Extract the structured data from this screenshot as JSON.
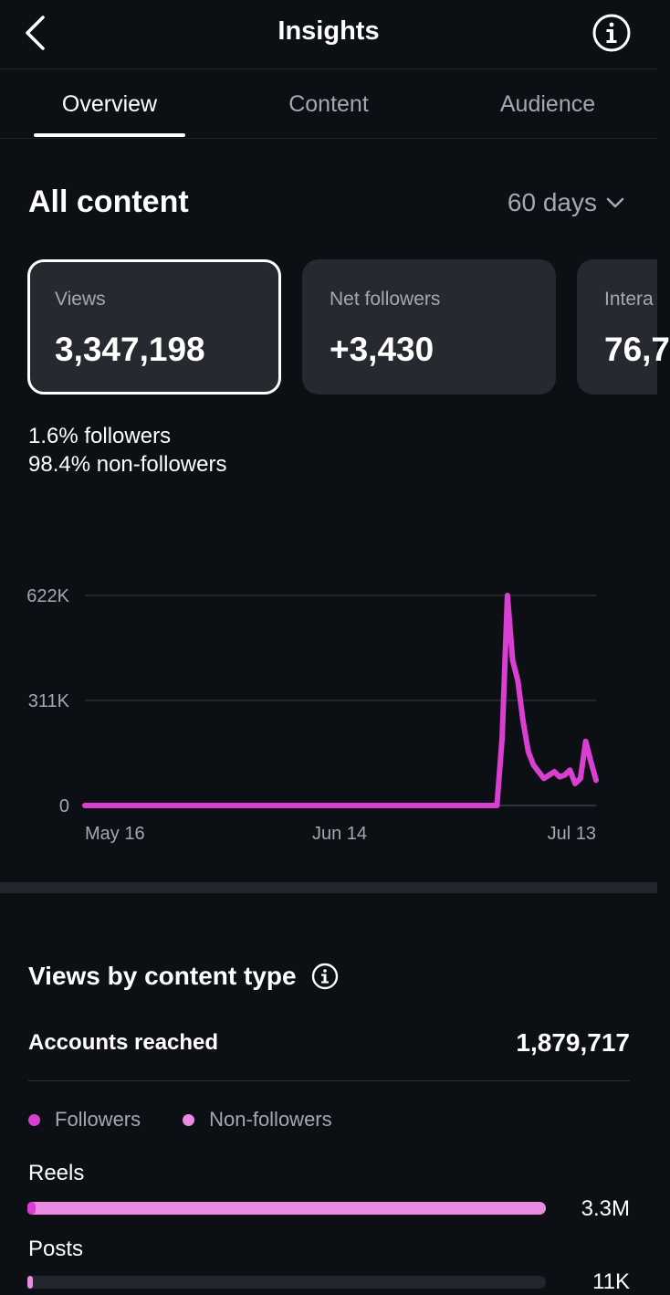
{
  "header": {
    "title": "Insights"
  },
  "tabs": [
    {
      "label": "Overview",
      "active": true
    },
    {
      "label": "Content",
      "active": false
    },
    {
      "label": "Audience",
      "active": false
    }
  ],
  "overview": {
    "section_title": "All content",
    "range": "60 days",
    "cards": [
      {
        "label": "Views",
        "value": "3,347,198",
        "selected": true
      },
      {
        "label": "Net followers",
        "value": "+3,430",
        "selected": false
      },
      {
        "label": "Intera",
        "value": "76,7",
        "selected": false
      }
    ],
    "breakdown": {
      "followers_pct": "1.6%",
      "followers_text": " followers",
      "nonfollowers_pct": "98.4%",
      "nonfollowers_text": " non-followers"
    }
  },
  "chart_data": {
    "type": "line",
    "y_ticks": [
      "622K",
      "311K",
      "0"
    ],
    "ylim": [
      0,
      622000
    ],
    "x_ticks": [
      "May 16",
      "Jun 14",
      "Jul 13"
    ],
    "color": "#d93fd0",
    "series": [
      {
        "values": [
          0,
          0,
          0,
          0,
          0,
          0,
          0,
          0,
          0,
          0,
          0,
          0,
          0,
          0,
          0,
          0,
          0,
          0,
          0,
          0,
          0,
          0,
          0,
          0,
          0,
          0,
          0,
          0,
          0,
          0,
          0,
          0,
          0,
          0,
          0,
          0,
          0,
          0,
          0,
          0,
          0,
          0,
          0,
          0,
          0,
          0,
          0,
          0,
          0,
          0,
          0,
          0,
          0,
          0,
          0,
          0,
          0,
          0,
          0,
          0,
          0,
          0,
          0,
          0,
          0,
          0,
          0,
          0,
          0,
          0,
          0,
          0,
          0,
          0,
          0,
          0,
          0,
          0,
          0,
          0,
          200000,
          622000,
          430000,
          370000,
          250000,
          160000,
          120000,
          100000,
          80000,
          90000,
          100000,
          85000,
          90000,
          105000,
          65000,
          80000,
          190000,
          130000,
          75000
        ]
      }
    ]
  },
  "views_by_type": {
    "title": "Views by content type",
    "accounts_label": "Accounts reached",
    "accounts_value": "1,879,717",
    "legend": [
      {
        "label": "Followers",
        "color": "#d93fd0"
      },
      {
        "label": "Non-followers",
        "color": "#ea8be3"
      }
    ],
    "rows": [
      {
        "label": "Reels",
        "value": "3.3M",
        "followers_fraction": 0.016,
        "total_fraction": 1.0
      },
      {
        "label": "Posts",
        "value": "11K",
        "followers_fraction": 0.0,
        "total_fraction": 0.003
      }
    ]
  }
}
